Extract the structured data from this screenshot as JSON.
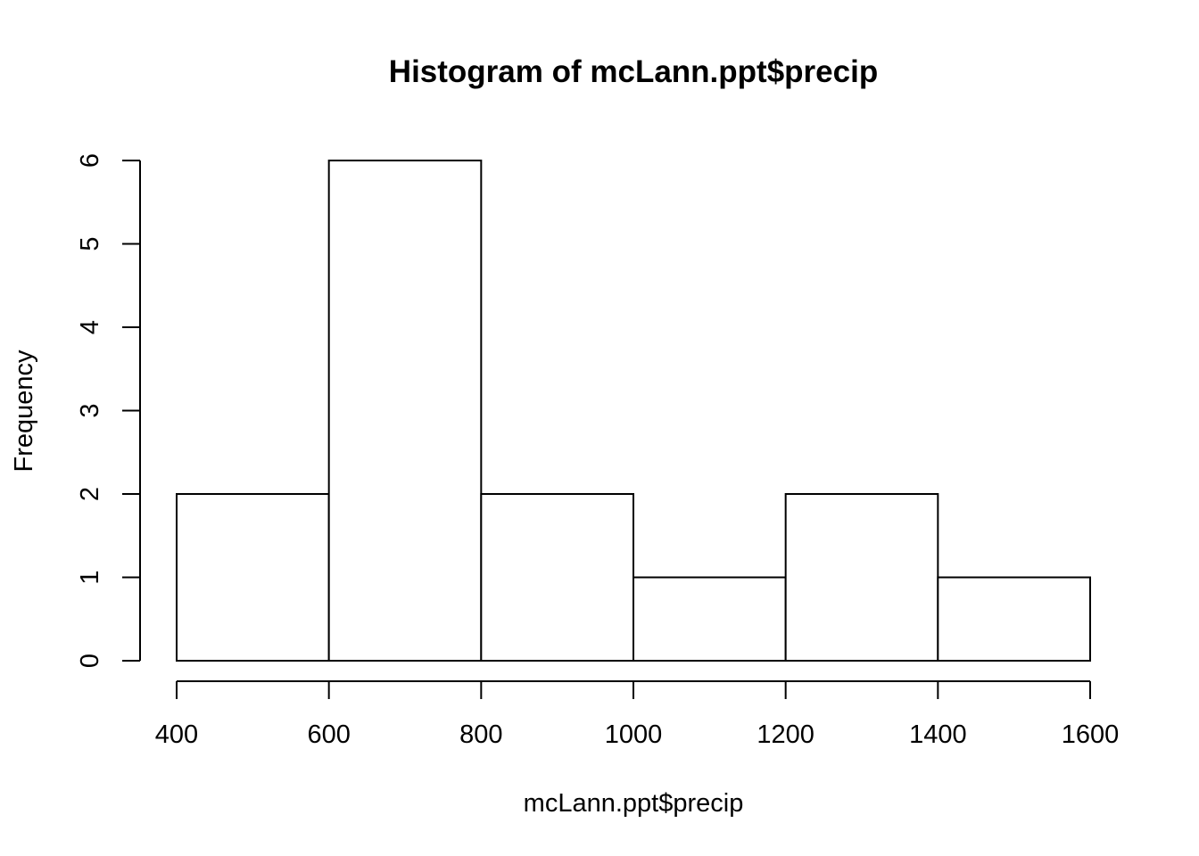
{
  "chart_data": {
    "type": "bar",
    "title": "Histogram of mcLann.ppt$precip",
    "xlabel": "mcLann.ppt$precip",
    "ylabel": "Frequency",
    "bins": [
      {
        "start": 400,
        "end": 600,
        "count": 2
      },
      {
        "start": 600,
        "end": 800,
        "count": 6
      },
      {
        "start": 800,
        "end": 1000,
        "count": 2
      },
      {
        "start": 1000,
        "end": 1200,
        "count": 1
      },
      {
        "start": 1200,
        "end": 1400,
        "count": 2
      },
      {
        "start": 1400,
        "end": 1600,
        "count": 1
      }
    ],
    "xlim": [
      400,
      1600
    ],
    "ylim": [
      0,
      6
    ],
    "xticks": [
      400,
      600,
      800,
      1000,
      1200,
      1400,
      1600
    ],
    "yticks": [
      0,
      1,
      2,
      3,
      4,
      5,
      6
    ],
    "bar_fill": "#ffffff",
    "bar_stroke": "#000000",
    "grid": false
  }
}
